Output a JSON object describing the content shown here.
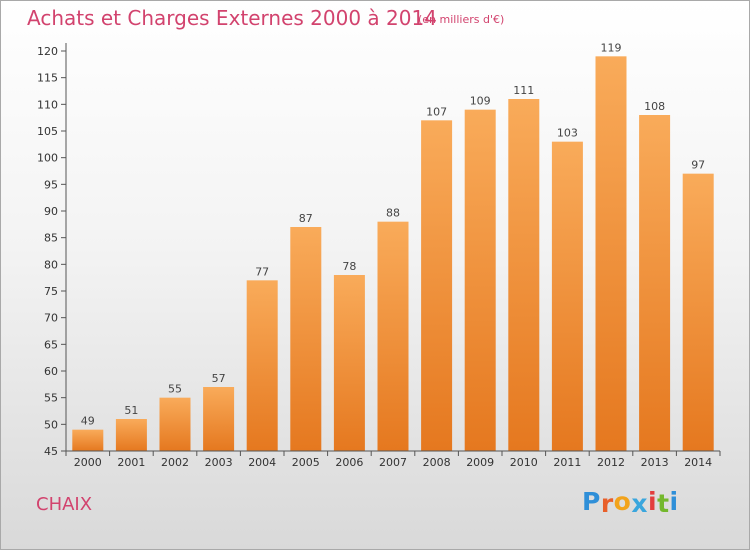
{
  "title": "Achats et Charges Externes 2000 à 2014",
  "unit_label": "(en milliers d'€)",
  "place_label": "CHAIX",
  "logo": {
    "letters": [
      "P",
      "r",
      "o",
      "x",
      "i",
      "t",
      "i"
    ],
    "colors": [
      "#2f8fd8",
      "#e85f2a",
      "#f2a31b",
      "#3aa6dd",
      "#e33e3e",
      "#74b82d",
      "#2f8fd8"
    ]
  },
  "colors": {
    "bar_top": "#f9ab5a",
    "bar_bottom": "#e5781f",
    "accent": "#d2436e"
  },
  "chart_data": {
    "type": "bar",
    "title": "Achats et Charges Externes 2000 à 2014",
    "subtitle": "(en milliers d'€)",
    "categories": [
      "2000",
      "2001",
      "2002",
      "2003",
      "2004",
      "2005",
      "2006",
      "2007",
      "2008",
      "2009",
      "2010",
      "2011",
      "2012",
      "2013",
      "2014"
    ],
    "values": [
      49,
      51,
      55,
      57,
      77,
      87,
      78,
      88,
      107,
      109,
      111,
      103,
      119,
      108,
      97
    ],
    "ylim": [
      45,
      120
    ],
    "yticks": [
      45,
      50,
      55,
      60,
      65,
      70,
      75,
      80,
      85,
      90,
      95,
      100,
      105,
      110,
      115,
      120
    ],
    "grid": false,
    "data_labels": true
  }
}
